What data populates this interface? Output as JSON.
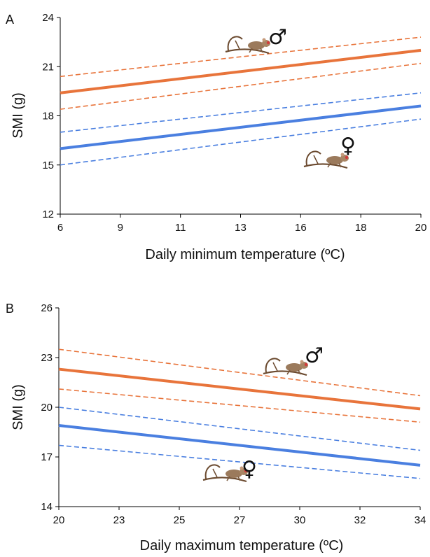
{
  "chart_data": [
    {
      "type": "line",
      "panel": "A",
      "xlabel": "Daily minimum temperature (ºC)",
      "ylabel": "SMI (g)",
      "x_ticks": [
        "6",
        "9",
        "11",
        "13",
        "16",
        "18",
        "20"
      ],
      "y_ticks": [
        "12",
        "15",
        "18",
        "21",
        "24"
      ],
      "xlim": [
        6,
        20
      ],
      "ylim": [
        12,
        24
      ],
      "grid": false,
      "colors": {
        "male": "#e8743b",
        "female": "#4a7fe0"
      },
      "annotations": [
        {
          "symbol": "♂",
          "series": "male",
          "icon": "mouse-lemur-on-branch"
        },
        {
          "symbol": "♀",
          "series": "female",
          "icon": "mouse-lemur-on-branch"
        }
      ],
      "series": [
        {
          "role": "male-fit",
          "style": "solid",
          "color": "#e8743b",
          "x": [
            6,
            20
          ],
          "y": [
            19.4,
            22.0
          ]
        },
        {
          "role": "male-ci-upper",
          "style": "dashed",
          "color": "#e8743b",
          "x": [
            6,
            20
          ],
          "y": [
            20.4,
            22.8
          ]
        },
        {
          "role": "male-ci-lower",
          "style": "dashed",
          "color": "#e8743b",
          "x": [
            6,
            20
          ],
          "y": [
            18.4,
            21.2
          ]
        },
        {
          "role": "female-fit",
          "style": "solid",
          "color": "#4a7fe0",
          "x": [
            6,
            20
          ],
          "y": [
            16.0,
            18.6
          ]
        },
        {
          "role": "female-ci-upper",
          "style": "dashed",
          "color": "#4a7fe0",
          "x": [
            6,
            20
          ],
          "y": [
            17.0,
            19.4
          ]
        },
        {
          "role": "female-ci-lower",
          "style": "dashed",
          "color": "#4a7fe0",
          "x": [
            6,
            20
          ],
          "y": [
            15.0,
            17.8
          ]
        }
      ]
    },
    {
      "type": "line",
      "panel": "B",
      "xlabel": "Daily maximum temperature (ºC)",
      "ylabel": "SMI (g)",
      "x_ticks": [
        "20",
        "23",
        "25",
        "27",
        "30",
        "32",
        "34"
      ],
      "y_ticks": [
        "14",
        "17",
        "20",
        "23",
        "26"
      ],
      "xlim": [
        20,
        34
      ],
      "ylim": [
        14,
        26
      ],
      "grid": false,
      "colors": {
        "male": "#e8743b",
        "female": "#4a7fe0"
      },
      "annotations": [
        {
          "symbol": "♂",
          "series": "male",
          "icon": "mouse-lemur-on-branch"
        },
        {
          "symbol": "♀",
          "series": "female",
          "icon": "mouse-lemur-on-branch"
        }
      ],
      "series": [
        {
          "role": "male-fit",
          "style": "solid",
          "color": "#e8743b",
          "x": [
            20,
            34
          ],
          "y": [
            22.3,
            19.9
          ]
        },
        {
          "role": "male-ci-upper",
          "style": "dashed",
          "color": "#e8743b",
          "x": [
            20,
            34
          ],
          "y": [
            23.5,
            20.7
          ]
        },
        {
          "role": "male-ci-lower",
          "style": "dashed",
          "color": "#e8743b",
          "x": [
            20,
            34
          ],
          "y": [
            21.1,
            19.1
          ]
        },
        {
          "role": "female-fit",
          "style": "solid",
          "color": "#4a7fe0",
          "x": [
            20,
            34
          ],
          "y": [
            18.9,
            16.5
          ]
        },
        {
          "role": "female-ci-upper",
          "style": "dashed",
          "color": "#4a7fe0",
          "x": [
            20,
            34
          ],
          "y": [
            20.0,
            17.4
          ]
        },
        {
          "role": "female-ci-lower",
          "style": "dashed",
          "color": "#4a7fe0",
          "x": [
            20,
            34
          ],
          "y": [
            17.7,
            15.7
          ]
        }
      ]
    }
  ]
}
